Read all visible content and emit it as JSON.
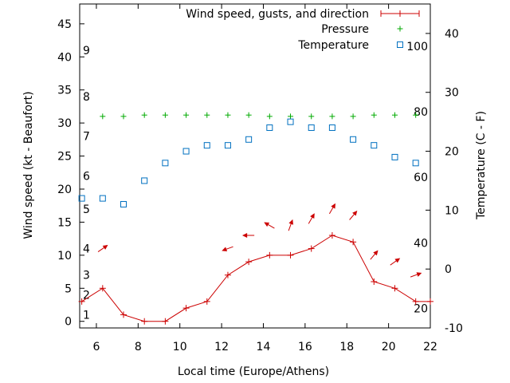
{
  "chart_data": {
    "type": "line",
    "xlabel": "Local time (Europe/Athens)",
    "ylabel": "Wind speed (kt - Beaufort)",
    "y2label": "Temperature (C - F)",
    "xlim": [
      5.2,
      22
    ],
    "ylim": [
      -1,
      48
    ],
    "y2lim": [
      -10,
      45
    ],
    "x_ticks": [
      "6",
      "8",
      "10",
      "12",
      "14",
      "16",
      "18",
      "20",
      "22"
    ],
    "y_ticks": [
      "0",
      "5",
      "10",
      "15",
      "20",
      "25",
      "30",
      "35",
      "40",
      "45"
    ],
    "y2_ticks": [
      "-10",
      "0",
      "10",
      "20",
      "30",
      "40"
    ],
    "beaufort_labels": [
      {
        "text": "1",
        "y": 1
      },
      {
        "text": "2",
        "y": 4
      },
      {
        "text": "3",
        "y": 7
      },
      {
        "text": "4",
        "y": 11
      },
      {
        "text": "5",
        "y": 17
      },
      {
        "text": "6",
        "y": 22
      },
      {
        "text": "7",
        "y": 28
      },
      {
        "text": "8",
        "y": 34
      },
      {
        "text": "9",
        "y": 41
      }
    ],
    "fahrenheit_labels": [
      {
        "text": "20",
        "y2": -6.7
      },
      {
        "text": "40",
        "y2": 4.4
      },
      {
        "text": "60",
        "y2": 15.6
      },
      {
        "text": "80",
        "y2": 26.7
      },
      {
        "text": "100",
        "y2": 37.8
      }
    ],
    "series": [
      {
        "name": "Wind speed, gusts, and direction",
        "color": "#cc0000",
        "x": [
          5.3,
          6.3,
          7.3,
          8.3,
          9.3,
          10.3,
          11.3,
          12.3,
          13.3,
          14.3,
          15.3,
          16.3,
          17.3,
          18.3,
          19.3,
          20.3,
          21.3,
          22.0
        ],
        "y": [
          3,
          5,
          1,
          0,
          0,
          2,
          3,
          7,
          9,
          10,
          10,
          11,
          13,
          12,
          6,
          5,
          3,
          3
        ]
      },
      {
        "name": "Pressure",
        "color": "#00aa00",
        "axis": "y",
        "x": [
          6.3,
          7.3,
          8.3,
          9.3,
          10.3,
          11.3,
          12.3,
          13.3,
          14.3,
          15.3,
          16.3,
          17.3,
          18.3,
          19.3,
          20.3,
          21.3
        ],
        "y": [
          31,
          31,
          31.2,
          31.2,
          31.2,
          31.2,
          31.2,
          31.2,
          31,
          31,
          31,
          31,
          31,
          31.2,
          31.2,
          31.2
        ]
      },
      {
        "name": "Temperature",
        "color": "#0070c0",
        "axis": "y2",
        "x": [
          5.3,
          6.3,
          7.3,
          8.3,
          9.3,
          10.3,
          11.3,
          12.3,
          13.3,
          14.3,
          15.3,
          16.3,
          17.3,
          18.3,
          19.3,
          20.3,
          21.3
        ],
        "y": [
          12,
          12,
          11,
          15,
          18,
          20,
          21,
          21,
          22,
          24,
          25,
          24,
          24,
          22,
          21,
          19,
          18
        ]
      }
    ],
    "wind_direction": {
      "color": "#cc0000",
      "points": [
        {
          "x": 6.3,
          "y": 11,
          "direction_deg": 55
        },
        {
          "x": 12.3,
          "y": 11,
          "direction_deg": 250
        },
        {
          "x": 13.3,
          "y": 13,
          "direction_deg": 270
        },
        {
          "x": 14.3,
          "y": 14.5,
          "direction_deg": 300
        },
        {
          "x": 15.3,
          "y": 14.5,
          "direction_deg": 20
        },
        {
          "x": 16.3,
          "y": 15.5,
          "direction_deg": 30
        },
        {
          "x": 17.3,
          "y": 17,
          "direction_deg": 30
        },
        {
          "x": 18.3,
          "y": 16,
          "direction_deg": 40
        },
        {
          "x": 19.3,
          "y": 10,
          "direction_deg": 40
        },
        {
          "x": 20.3,
          "y": 9,
          "direction_deg": 55
        },
        {
          "x": 21.3,
          "y": 7,
          "direction_deg": 70
        }
      ]
    },
    "grid": false,
    "legend_position": "top-right"
  }
}
